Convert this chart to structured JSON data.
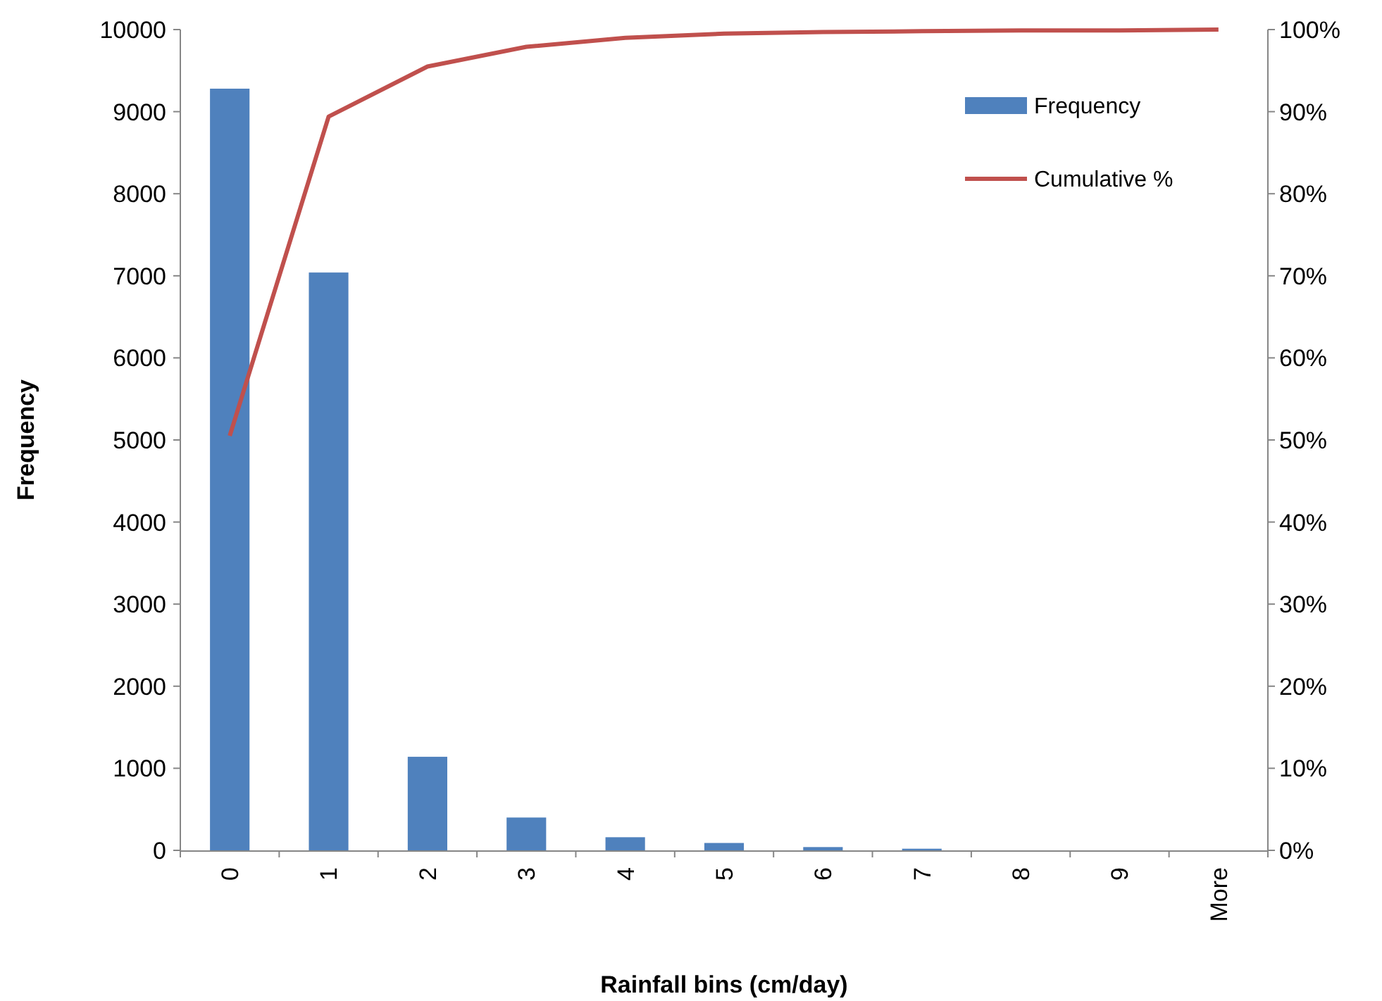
{
  "chart_data": {
    "type": "bar",
    "xlabel": "Rainfall bins (cm/day)",
    "ylabel": "Frequency",
    "categories": [
      "0",
      "1",
      "2",
      "3",
      "4",
      "5",
      "6",
      "7",
      "8",
      "9",
      "More"
    ],
    "series": [
      {
        "name": "Frequency",
        "color": "#4f81bd",
        "values": [
          9280,
          7040,
          1140,
          400,
          160,
          90,
          40,
          20,
          0,
          0,
          0
        ]
      },
      {
        "name": "Cumulative %",
        "type": "line",
        "axis": "y2",
        "color": "#c0504d",
        "values": [
          50.5,
          89.4,
          95.5,
          97.9,
          99.0,
          99.5,
          99.7,
          99.8,
          99.9,
          99.9,
          100
        ]
      }
    ],
    "ylim": [
      0,
      10000
    ],
    "yticks": [
      0,
      1000,
      2000,
      3000,
      4000,
      5000,
      6000,
      7000,
      8000,
      9000,
      10000
    ],
    "y2lim": [
      0,
      100
    ],
    "y2ticks": [
      {
        "value": 0,
        "label": "0%"
      },
      {
        "value": 10,
        "label": "10%"
      },
      {
        "value": 20,
        "label": "20%"
      },
      {
        "value": 30,
        "label": "30%"
      },
      {
        "value": 40,
        "label": "40%"
      },
      {
        "value": 50,
        "label": "50%"
      },
      {
        "value": 60,
        "label": "60%"
      },
      {
        "value": 70,
        "label": "70%"
      },
      {
        "value": 80,
        "label": "80%"
      },
      {
        "value": 90,
        "label": "90%"
      },
      {
        "value": 100,
        "label": "100%"
      }
    ],
    "legend": "top right",
    "grid": false,
    "marker": "none",
    "line_style": "solid"
  }
}
